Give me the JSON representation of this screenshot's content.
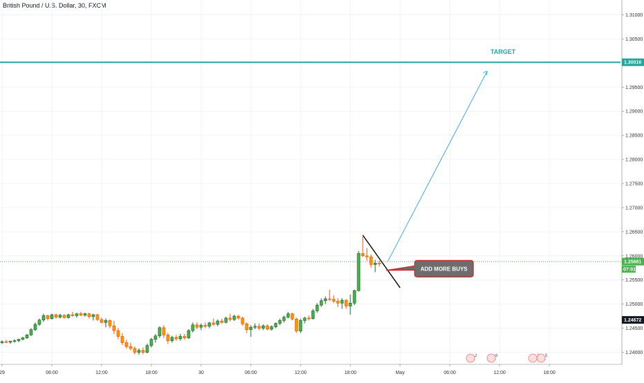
{
  "header": {
    "title": "British Pound / U.S. Dollar, 30, FXCM"
  },
  "colors": {
    "up": "#4caf50",
    "down": "#ff9800",
    "target": "#26a69a",
    "arrow": "#42a5f5",
    "current": "#4caf50",
    "grid": "#f0f3fa"
  },
  "chart_data": {
    "type": "candlestick",
    "symbol": "British Pound / U.S. Dollar, 30, FXCM",
    "ylim": [
      1.2375,
      1.3125
    ],
    "y_ticks": [
      "1.31000",
      "1.30500",
      "1.30000",
      "1.29500",
      "1.29000",
      "1.28500",
      "1.28000",
      "1.27500",
      "1.27000",
      "1.26500",
      "1.26000",
      "1.25500",
      "1.25000",
      "1.24500",
      "1.24000"
    ],
    "y_tick_values": [
      1.31,
      1.305,
      1.3,
      1.295,
      1.29,
      1.285,
      1.28,
      1.275,
      1.27,
      1.265,
      1.26,
      1.255,
      1.25,
      1.245,
      1.24
    ],
    "x_ticks": [
      "29",
      "06:00",
      "12:00",
      "18:00",
      "30",
      "06:00",
      "12:00",
      "18:00",
      "May",
      "06:00",
      "12:00",
      "18:00"
    ],
    "x_tick_bars": [
      0,
      12,
      24,
      36,
      48,
      60,
      72,
      84,
      96,
      108,
      120,
      132
    ],
    "candles": [
      [
        1.242,
        1.2425,
        1.2417,
        1.2422
      ],
      [
        1.2422,
        1.2426,
        1.2419,
        1.2421
      ],
      [
        1.2421,
        1.2424,
        1.2418,
        1.2423
      ],
      [
        1.2423,
        1.2427,
        1.242,
        1.2424
      ],
      [
        1.2424,
        1.2428,
        1.2421,
        1.2427
      ],
      [
        1.2427,
        1.2432,
        1.2425,
        1.243
      ],
      [
        1.243,
        1.2438,
        1.2428,
        1.2436
      ],
      [
        1.2436,
        1.245,
        1.2434,
        1.2447
      ],
      [
        1.2447,
        1.2462,
        1.2444,
        1.2458
      ],
      [
        1.2458,
        1.247,
        1.2455,
        1.2467
      ],
      [
        1.2467,
        1.248,
        1.2463,
        1.2476
      ],
      [
        1.2476,
        1.2478,
        1.2466,
        1.247
      ],
      [
        1.247,
        1.248,
        1.2468,
        1.2478
      ],
      [
        1.2478,
        1.248,
        1.247,
        1.2473
      ],
      [
        1.2473,
        1.248,
        1.247,
        1.2477
      ],
      [
        1.2477,
        1.2479,
        1.247,
        1.2472
      ],
      [
        1.2472,
        1.248,
        1.247,
        1.2478
      ],
      [
        1.2478,
        1.2484,
        1.2474,
        1.2476
      ],
      [
        1.2476,
        1.2482,
        1.2472,
        1.248
      ],
      [
        1.248,
        1.2484,
        1.2475,
        1.2477
      ],
      [
        1.2477,
        1.2482,
        1.2474,
        1.248
      ],
      [
        1.248,
        1.2482,
        1.247,
        1.2474
      ],
      [
        1.2474,
        1.248,
        1.2466,
        1.2478
      ],
      [
        1.2478,
        1.248,
        1.2465,
        1.2468
      ],
      [
        1.2468,
        1.2472,
        1.246,
        1.2462
      ],
      [
        1.2462,
        1.247,
        1.2452,
        1.2466
      ],
      [
        1.2466,
        1.2468,
        1.245,
        1.2455
      ],
      [
        1.2455,
        1.2465,
        1.2438,
        1.2445
      ],
      [
        1.2445,
        1.245,
        1.2427,
        1.2433
      ],
      [
        1.2433,
        1.244,
        1.2415,
        1.242
      ],
      [
        1.242,
        1.2426,
        1.2408,
        1.2412
      ],
      [
        1.2412,
        1.242,
        1.2404,
        1.2408
      ],
      [
        1.2408,
        1.2412,
        1.2396,
        1.24
      ],
      [
        1.24,
        1.2408,
        1.2395,
        1.2404
      ],
      [
        1.2404,
        1.241,
        1.2396,
        1.24
      ],
      [
        1.24,
        1.2418,
        1.2398,
        1.2414
      ],
      [
        1.2414,
        1.243,
        1.241,
        1.2427
      ],
      [
        1.2427,
        1.2438,
        1.242,
        1.2434
      ],
      [
        1.2434,
        1.2454,
        1.243,
        1.2451
      ],
      [
        1.2451,
        1.2456,
        1.243,
        1.2436
      ],
      [
        1.2436,
        1.244,
        1.2418,
        1.2424
      ],
      [
        1.2424,
        1.2434,
        1.242,
        1.2431
      ],
      [
        1.2431,
        1.2436,
        1.2424,
        1.2428
      ],
      [
        1.2428,
        1.2438,
        1.2424,
        1.2433
      ],
      [
        1.2433,
        1.2438,
        1.2426,
        1.243
      ],
      [
        1.243,
        1.2448,
        1.2428,
        1.2445
      ],
      [
        1.2445,
        1.2462,
        1.2441,
        1.2457
      ],
      [
        1.2457,
        1.2462,
        1.2448,
        1.2452
      ],
      [
        1.2452,
        1.246,
        1.2446,
        1.2456
      ],
      [
        1.2456,
        1.2462,
        1.245,
        1.2454
      ],
      [
        1.2454,
        1.2463,
        1.245,
        1.2461
      ],
      [
        1.2461,
        1.247,
        1.2455,
        1.2458
      ],
      [
        1.2458,
        1.2468,
        1.2454,
        1.2465
      ],
      [
        1.2465,
        1.247,
        1.2459,
        1.2462
      ],
      [
        1.2462,
        1.2474,
        1.246,
        1.2471
      ],
      [
        1.2471,
        1.248,
        1.2464,
        1.2468
      ],
      [
        1.2468,
        1.2478,
        1.2465,
        1.2475
      ],
      [
        1.2475,
        1.2478,
        1.2468,
        1.2471
      ],
      [
        1.2471,
        1.2474,
        1.2455,
        1.2459
      ],
      [
        1.2459,
        1.2462,
        1.244,
        1.2447
      ],
      [
        1.2447,
        1.2456,
        1.2432,
        1.2452
      ],
      [
        1.2452,
        1.246,
        1.2448,
        1.2454
      ],
      [
        1.2454,
        1.246,
        1.2446,
        1.245
      ],
      [
        1.245,
        1.2458,
        1.2446,
        1.2455
      ],
      [
        1.2455,
        1.2458,
        1.2446,
        1.2448
      ],
      [
        1.2448,
        1.2456,
        1.2445,
        1.2453
      ],
      [
        1.2453,
        1.2462,
        1.245,
        1.246
      ],
      [
        1.246,
        1.247,
        1.2456,
        1.2466
      ],
      [
        1.2466,
        1.2476,
        1.2462,
        1.2473
      ],
      [
        1.2473,
        1.2484,
        1.247,
        1.248
      ],
      [
        1.248,
        1.2482,
        1.2466,
        1.2469
      ],
      [
        1.2469,
        1.2472,
        1.244,
        1.2444
      ],
      [
        1.2444,
        1.247,
        1.244,
        1.2466
      ],
      [
        1.2466,
        1.2474,
        1.246,
        1.2471
      ],
      [
        1.2471,
        1.2476,
        1.2466,
        1.247
      ],
      [
        1.247,
        1.249,
        1.2468,
        1.2486
      ],
      [
        1.2486,
        1.2502,
        1.2482,
        1.2498
      ],
      [
        1.2498,
        1.2512,
        1.2494,
        1.2507
      ],
      [
        1.2507,
        1.2516,
        1.25,
        1.2511
      ],
      [
        1.2511,
        1.253,
        1.2506,
        1.251
      ],
      [
        1.251,
        1.2518,
        1.2502,
        1.2506
      ],
      [
        1.2506,
        1.2512,
        1.2494,
        1.2502
      ],
      [
        1.2502,
        1.2512,
        1.249,
        1.2508
      ],
      [
        1.2508,
        1.251,
        1.249,
        1.2496
      ],
      [
        1.2496,
        1.252,
        1.2478,
        1.2502
      ],
      [
        1.2502,
        1.253,
        1.2498,
        1.2528
      ],
      [
        1.2528,
        1.261,
        1.2526,
        1.2605
      ],
      [
        1.2605,
        1.264,
        1.2598,
        1.26
      ],
      [
        1.26,
        1.2616,
        1.259,
        1.2598
      ],
      [
        1.2598,
        1.2603,
        1.2575,
        1.2582
      ],
      [
        1.2582,
        1.2592,
        1.2566,
        1.2585
      ],
      [
        1.2585,
        1.259,
        1.2578,
        1.2584
      ]
    ],
    "levels": [
      {
        "name": "target",
        "value": 1.30016,
        "label": "1.30016"
      },
      {
        "name": "current",
        "value": 1.25881,
        "label": "1.25881",
        "countdown": "07:01"
      },
      {
        "name": "last-visible",
        "value": 1.24672,
        "label": "1.24672"
      }
    ],
    "annotations": {
      "target_text": "TARGET",
      "callout_text": "ADD MORE BUYS"
    },
    "events": [
      {
        "bar": 113,
        "count": "2"
      },
      {
        "bar": 118,
        "count": "6"
      },
      {
        "bar": 128,
        "count": "2"
      },
      {
        "bar": 130,
        "count": "5"
      }
    ]
  }
}
